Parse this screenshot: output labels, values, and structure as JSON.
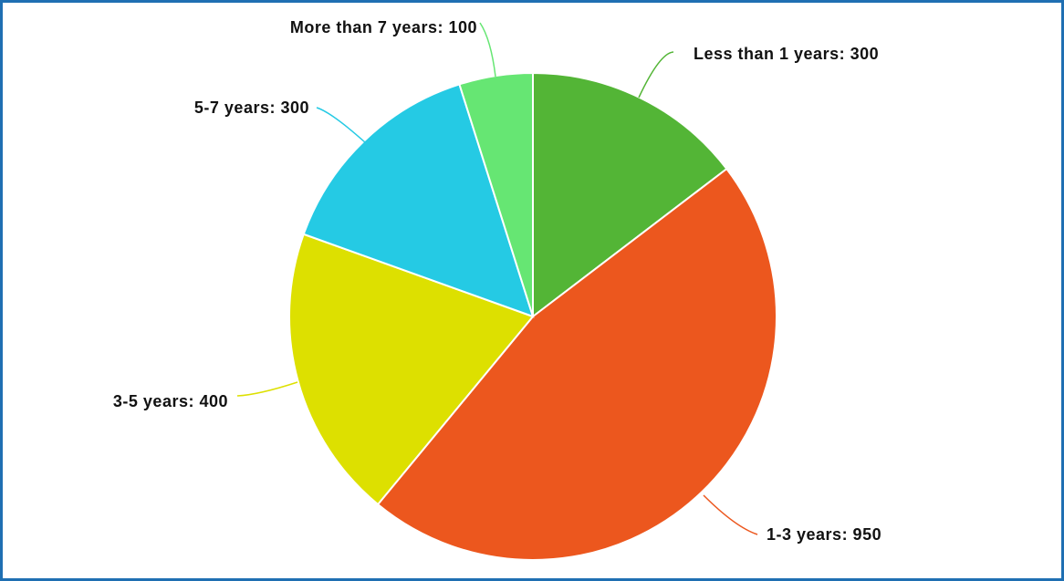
{
  "chart_data": {
    "type": "pie",
    "title": "",
    "slices": [
      {
        "label": "Less than 1 years",
        "value": 300,
        "color": "#53b536",
        "text": "Less than 1 years: 300"
      },
      {
        "label": "1-3 years",
        "value": 950,
        "color": "#ec571e",
        "text": "1-3 years: 950"
      },
      {
        "label": "3-5 years",
        "value": 400,
        "color": "#dde000",
        "text": "3-5 years: 400"
      },
      {
        "label": "5-7 years",
        "value": 300,
        "color": "#25cae4",
        "text": "5-7 years: 300"
      },
      {
        "label": "More than 7 years",
        "value": 100,
        "color": "#66e673",
        "text": "More than 7 years: 100"
      }
    ],
    "start": "top",
    "direction": "clockwise",
    "legend": "none",
    "border_color": "#1f6fb2"
  }
}
